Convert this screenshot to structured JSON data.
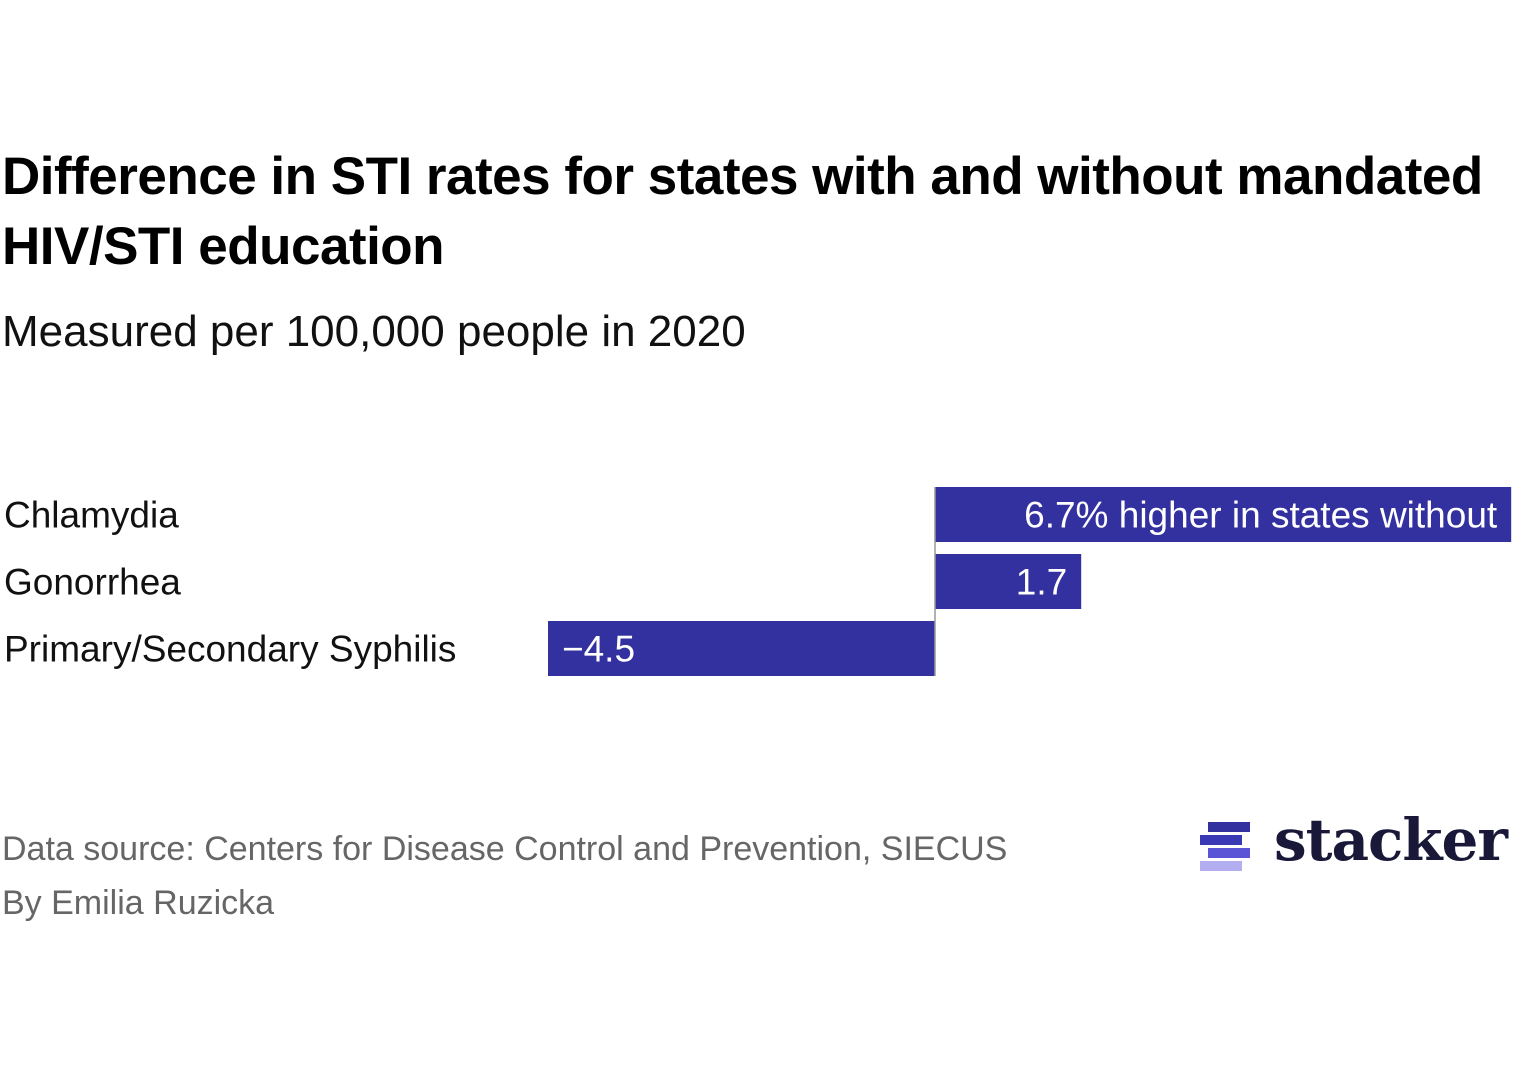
{
  "header": {
    "title": "Difference in STI rates for states with and without mandated HIV/STI education",
    "subtitle": "Measured per 100,000 people in 2020"
  },
  "footer": {
    "source": "Data source: Centers for Disease Control and Prevention, SIECUS",
    "byline": "By Emilia Ruzicka"
  },
  "logo": {
    "text": "stacker",
    "icon": "stacked-bars-logo-icon",
    "colors": [
      "#33309f",
      "#3b3ab5",
      "#5a55d6",
      "#b3aef0"
    ]
  },
  "chart_data": {
    "type": "bar",
    "orientation": "horizontal",
    "title": "Difference in STI rates for states with and without mandated HIV/STI education",
    "subtitle": "Measured per 100,000 people in 2020",
    "categories": [
      "Chlamydia",
      "Gonorrhea",
      "Primary/Secondary Syphilis"
    ],
    "values": [
      6.7,
      1.7,
      -4.5
    ],
    "data_labels": [
      "6.7% higher in states without",
      "1.7",
      "−4.5"
    ],
    "xlim": [
      -4.5,
      6.7
    ],
    "bar_color": "#3330a0",
    "grid": false,
    "legend": "none",
    "xlabel": "",
    "ylabel": ""
  }
}
